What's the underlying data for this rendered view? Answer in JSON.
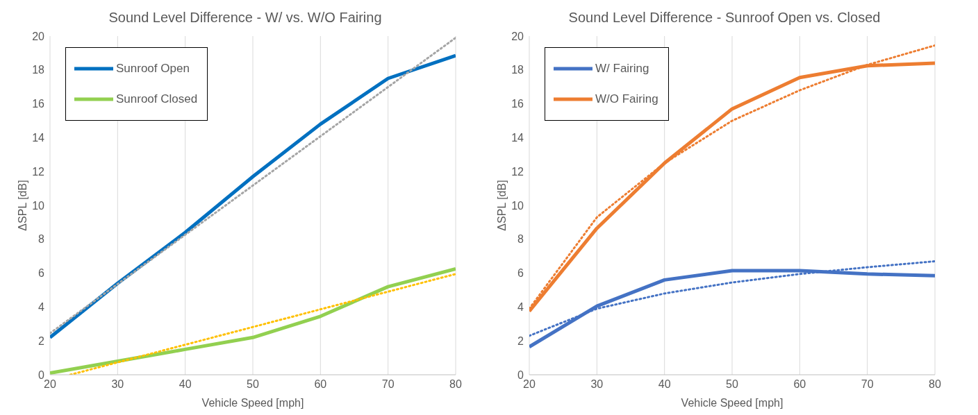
{
  "chart_data": [
    {
      "type": "line",
      "title": "Sound Level Difference - W/ vs. W/O Fairing",
      "xlabel": "Vehicle Speed [mph]",
      "ylabel": "ΔSPL [dB]",
      "x": [
        20,
        30,
        40,
        50,
        60,
        70,
        80
      ],
      "xlim": [
        20,
        80
      ],
      "xticks": [
        20,
        30,
        40,
        50,
        60,
        70,
        80
      ],
      "ylim": [
        0,
        20
      ],
      "yticks": [
        0,
        2,
        4,
        6,
        8,
        10,
        12,
        14,
        16,
        18,
        20
      ],
      "grid": "x",
      "legend": "top left",
      "marker": "none",
      "series": [
        {
          "name": "Sunroof Open",
          "color": "#0070c0",
          "values": [
            2.2,
            5.4,
            8.4,
            11.7,
            14.8,
            17.5,
            18.85
          ]
        },
        {
          "name": "Sunroof Closed",
          "color": "#92d050",
          "values": [
            0.1,
            0.8,
            1.5,
            2.2,
            3.45,
            5.2,
            6.25
          ]
        },
        {
          "color": "#a5a5a5",
          "line_style": "dotted",
          "x": [
            20,
            80
          ],
          "values": [
            2.45,
            19.9
          ]
        },
        {
          "color": "#ffc000",
          "line_style": "dotted",
          "x": [
            23,
            80
          ],
          "values": [
            0,
            5.95
          ]
        }
      ]
    },
    {
      "type": "line",
      "title": "Sound Level Difference - Sunroof Open vs. Closed",
      "xlabel": "Vehicle Speed [mph]",
      "ylabel": "ΔSPL [dB]",
      "x": [
        20,
        30,
        40,
        50,
        60,
        70,
        80
      ],
      "xlim": [
        20,
        80
      ],
      "xticks": [
        20,
        30,
        40,
        50,
        60,
        70,
        80
      ],
      "ylim": [
        0,
        20
      ],
      "yticks": [
        0,
        2,
        4,
        6,
        8,
        10,
        12,
        14,
        16,
        18,
        20
      ],
      "grid": "x",
      "legend": "top left",
      "marker": "none",
      "series": [
        {
          "name": "W/ Fairing",
          "color": "#4472c4",
          "values": [
            1.65,
            4.05,
            5.6,
            6.15,
            6.15,
            5.95,
            5.85
          ]
        },
        {
          "name": "W/O Fairing",
          "color": "#ed7d31",
          "values": [
            3.75,
            8.65,
            12.5,
            15.7,
            17.55,
            18.25,
            18.4
          ]
        },
        {
          "color": "#4472c4",
          "line_style": "dotted",
          "values": [
            2.3,
            3.9,
            4.8,
            5.45,
            5.95,
            6.35,
            6.7
          ]
        },
        {
          "color": "#ed7d31",
          "line_style": "dotted",
          "values": [
            3.9,
            9.3,
            12.5,
            15.0,
            16.8,
            18.3,
            19.45
          ]
        }
      ]
    }
  ]
}
